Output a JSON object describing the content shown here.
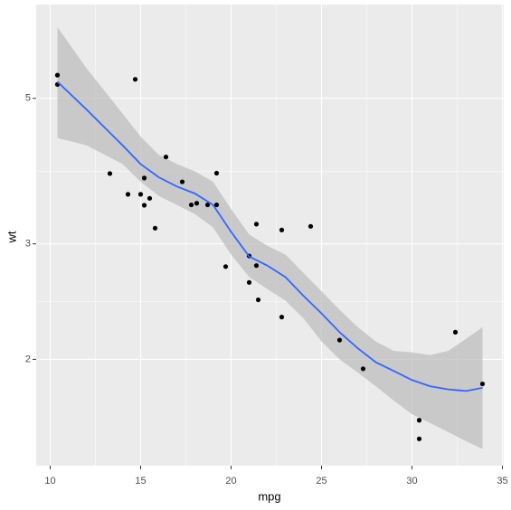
{
  "chart_data": {
    "type": "scatter",
    "x_label": "mpg",
    "y_label": "wt",
    "xlim": [
      9.225,
      35.075
    ],
    "xticks": [
      10,
      15,
      20,
      25,
      30,
      35
    ],
    "ylim": [
      1.377,
      6.95
    ],
    "yticks": [
      2,
      3,
      5
    ],
    "ylog": true,
    "grid": true,
    "series": [
      {
        "color": "#000000",
        "x": [
          21,
          21,
          22.8,
          21.4,
          18.7,
          18.1,
          14.3,
          24.4,
          22.8,
          19.2,
          17.8,
          16.4,
          17.3,
          15.2,
          10.4,
          10.4,
          14.7,
          32.4,
          30.4,
          33.9,
          21.5,
          15.5,
          15.2,
          13.3,
          19.2,
          27.3,
          26,
          30.4,
          15.8,
          19.7,
          15,
          21.4
        ],
        "values": [
          2.62,
          2.875,
          2.32,
          3.215,
          3.44,
          3.46,
          3.57,
          3.19,
          3.15,
          3.44,
          3.44,
          4.07,
          3.73,
          3.78,
          5.25,
          5.424,
          5.345,
          2.2,
          1.615,
          1.835,
          2.465,
          3.52,
          3.435,
          3.84,
          3.845,
          1.935,
          2.14,
          1.513,
          3.17,
          2.77,
          3.57,
          2.78
        ]
      }
    ],
    "smooth": {
      "color": "#3366ff",
      "band_color": "#bebebe",
      "x": [
        10.4,
        12,
        14,
        15,
        16,
        17,
        18,
        19,
        20,
        21,
        22,
        23,
        24,
        25,
        26,
        27,
        28,
        29,
        30,
        31,
        32,
        33,
        33.9
      ],
      "values": [
        5.3,
        4.81,
        4.24,
        3.97,
        3.79,
        3.67,
        3.58,
        3.44,
        3.13,
        2.87,
        2.78,
        2.67,
        2.5,
        2.35,
        2.2,
        2.08,
        1.98,
        1.92,
        1.86,
        1.82,
        1.8,
        1.79,
        1.81
      ],
      "upper": [
        6.42,
        5.56,
        4.74,
        4.37,
        4.1,
        3.97,
        3.87,
        3.73,
        3.39,
        3.1,
        2.98,
        2.89,
        2.71,
        2.54,
        2.38,
        2.24,
        2.13,
        2.06,
        2.05,
        2.03,
        2.06,
        2.15,
        2.24
      ],
      "lower": [
        4.35,
        4.24,
        3.97,
        3.73,
        3.55,
        3.44,
        3.33,
        3.18,
        2.89,
        2.67,
        2.56,
        2.46,
        2.31,
        2.13,
        2.0,
        1.91,
        1.82,
        1.73,
        1.65,
        1.6,
        1.55,
        1.5,
        1.46
      ]
    }
  }
}
